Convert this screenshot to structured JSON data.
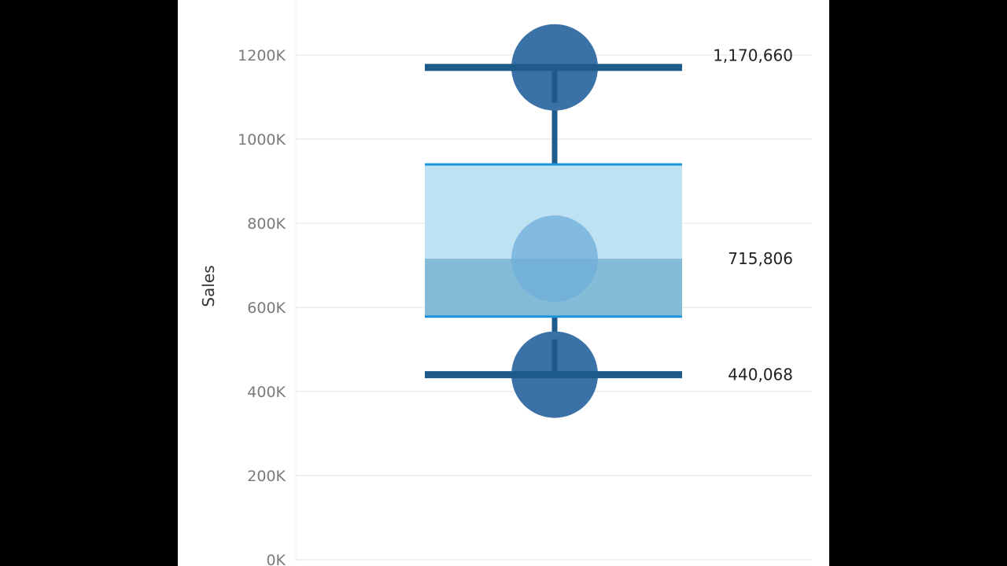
{
  "chart_data": {
    "type": "box",
    "ylabel": "Sales",
    "ylim": [
      0,
      1250000
    ],
    "yticks": [
      0,
      200000,
      400000,
      600000,
      800000,
      1000000,
      1200000
    ],
    "ytick_labels": [
      "0K",
      "200K",
      "400K",
      "600K",
      "800K",
      "1000K",
      "1200K"
    ],
    "grid": true,
    "points": [
      1170660,
      715806,
      440068
    ],
    "box": {
      "whisker_high": 1170660,
      "q3": 940000,
      "median": 715806,
      "q1": 578000,
      "whisker_low": 440068
    },
    "data_labels": [
      "1,170,660",
      "715,806",
      "440,068"
    ],
    "colors": {
      "point": "#3a71a6",
      "whisker": "#1f5b8a",
      "box_upper": "#bfe1f4",
      "box_lower": "#84bcd8",
      "box_edge": "#1f95d9",
      "median_point": "#6fadda",
      "grid": "#ececec"
    }
  }
}
